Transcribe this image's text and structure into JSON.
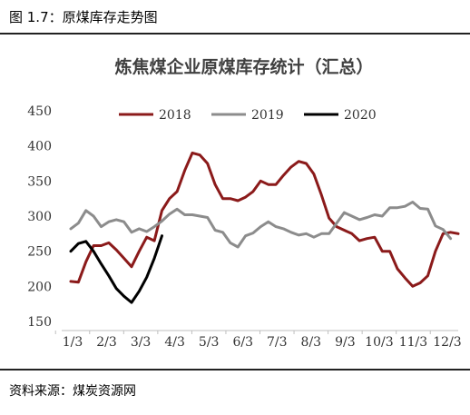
{
  "figure": {
    "label": "图 1.7：原煤库存走势图",
    "source": "资料来源：煤炭资源网"
  },
  "chart_data": {
    "type": "line",
    "title": "炼焦煤企业原煤库存统计（汇总）",
    "xlabel": "",
    "ylabel": "",
    "ylim": [
      150,
      450
    ],
    "yticks": [
      150,
      200,
      250,
      300,
      350,
      400,
      450
    ],
    "xticks": [
      "1/3",
      "2/3",
      "3/3",
      "4/3",
      "5/3",
      "6/3",
      "7/3",
      "8/3",
      "9/3",
      "10/3",
      "11/3",
      "12/3"
    ],
    "grid": false,
    "legend_position": "top",
    "series": [
      {
        "name": "2018",
        "color": "#8b1a1a",
        "values": [
          207,
          206,
          235,
          258,
          258,
          262,
          252,
          240,
          228,
          250,
          270,
          265,
          308,
          325,
          335,
          365,
          390,
          387,
          375,
          345,
          325,
          325,
          322,
          327,
          335,
          350,
          345,
          345,
          358,
          370,
          378,
          375,
          360,
          330,
          297,
          285,
          280,
          275,
          265,
          268,
          270,
          250,
          250,
          225,
          212,
          200,
          205,
          215,
          250,
          275,
          277,
          275
        ]
      },
      {
        "name": "2019",
        "color": "#8c8c8c",
        "values": [
          282,
          290,
          308,
          300,
          285,
          292,
          295,
          292,
          277,
          282,
          278,
          285,
          293,
          303,
          310,
          302,
          302,
          300,
          298,
          280,
          277,
          262,
          256,
          272,
          276,
          285,
          292,
          285,
          282,
          277,
          273,
          275,
          270,
          275,
          275,
          290,
          305,
          300,
          295,
          298,
          302,
          300,
          312,
          312,
          314,
          320,
          311,
          310,
          286,
          281,
          268
        ]
      },
      {
        "name": "2020",
        "color": "#000000",
        "values": [
          250,
          261,
          264,
          250,
          232,
          215,
          197,
          186,
          177,
          193,
          213,
          240,
          272
        ]
      }
    ]
  }
}
